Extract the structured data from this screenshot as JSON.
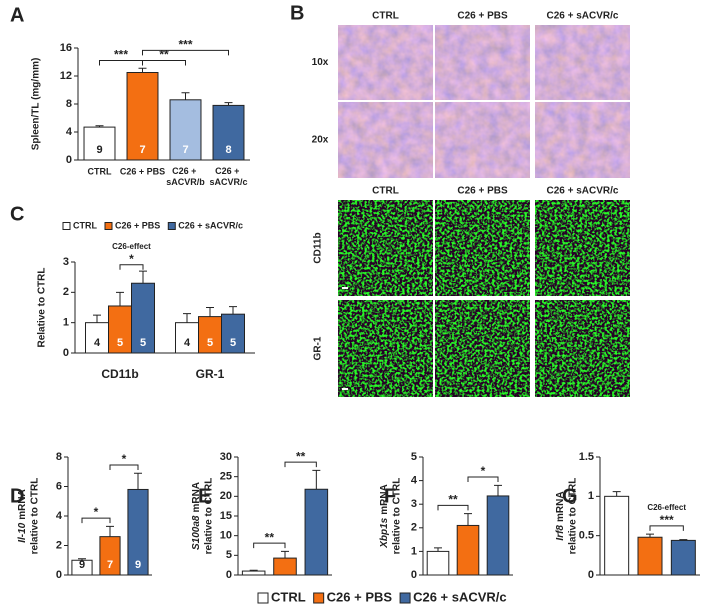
{
  "chart_data": [
    {
      "type": "bar",
      "panel": "A",
      "ylabel": "Spleen/TL (mg/mm)",
      "categories": [
        "CTRL",
        "C26 + PBS",
        "C26 + sACVR/b",
        "C26 + sACVR/c"
      ],
      "values": [
        4.7,
        12.5,
        8.6,
        7.8
      ],
      "errors": [
        0.2,
        0.6,
        1.0,
        0.4
      ],
      "n": [
        9,
        7,
        7,
        8
      ],
      "colors": [
        "#ffffff",
        "#f36f12",
        "#a4bde0",
        "#4069a0"
      ],
      "ylim": [
        0,
        16
      ],
      "yticks": [
        0,
        4,
        8,
        12,
        16
      ],
      "significance": [
        {
          "bars": [
            0,
            1
          ],
          "label": "***"
        },
        {
          "bars": [
            1,
            2
          ],
          "label": "**"
        },
        {
          "bars": [
            1,
            3
          ],
          "label": "***"
        }
      ]
    },
    {
      "type": "bar",
      "panel": "C",
      "ylabel": "Relative to CTRL",
      "categories": [
        "CD11b",
        "GR-1"
      ],
      "series": [
        {
          "name": "CTRL",
          "color": "#ffffff",
          "values": [
            1,
            1
          ],
          "errors": [
            0.25,
            0.3
          ],
          "n": [
            4,
            4
          ]
        },
        {
          "name": "C26 + PBS",
          "color": "#f36f12",
          "values": [
            1.55,
            1.2
          ],
          "errors": [
            0.45,
            0.3
          ],
          "n": [
            5,
            5
          ]
        },
        {
          "name": "C26 + sACVR/c",
          "color": "#4069a0",
          "values": [
            2.3,
            1.28
          ],
          "errors": [
            0.4,
            0.25
          ],
          "n": [
            5,
            5
          ]
        }
      ],
      "ylim": [
        0,
        3
      ],
      "yticks": [
        0,
        1,
        2,
        3
      ],
      "annotation": "C26-effect",
      "significance": [
        {
          "group": 0,
          "bars": [
            1,
            2
          ],
          "label": "*"
        }
      ]
    },
    {
      "type": "bar",
      "panel": "D",
      "ylabel": {
        "gene": "Il-10",
        "text": "mRNA",
        "line2": "relative to CTRL"
      },
      "categories": [
        null,
        null,
        null
      ],
      "values": [
        1,
        2.6,
        5.8
      ],
      "errors": [
        0.1,
        0.7,
        1.1
      ],
      "n": [
        9,
        7,
        9
      ],
      "colors": [
        "#ffffff",
        "#f36f12",
        "#4069a0"
      ],
      "ylim": [
        0,
        8
      ],
      "yticks": [
        0,
        2,
        4,
        6,
        8
      ],
      "significance": [
        {
          "bars": [
            0,
            1
          ],
          "label": "*"
        },
        {
          "bars": [
            1,
            2
          ],
          "label": "*"
        }
      ]
    },
    {
      "type": "bar",
      "panel": "E",
      "ylabel": {
        "gene": "S100a8",
        "text": "mRNA",
        "line2": "relative to CTRL"
      },
      "categories": [
        null,
        null,
        null
      ],
      "values": [
        1,
        4.3,
        21.8
      ],
      "errors": [
        0.2,
        1.7,
        4.8
      ],
      "colors": [
        "#ffffff",
        "#f36f12",
        "#4069a0"
      ],
      "ylim": [
        0,
        30
      ],
      "yticks": [
        0,
        5,
        10,
        15,
        20,
        25,
        30
      ],
      "significance": [
        {
          "bars": [
            0,
            1
          ],
          "label": "**"
        },
        {
          "bars": [
            1,
            2
          ],
          "label": "**"
        }
      ]
    },
    {
      "type": "bar",
      "panel": "F",
      "ylabel": {
        "gene": "Xbp1s",
        "text": "mRNA",
        "line2": "relative to CTRL"
      },
      "categories": [
        null,
        null,
        null
      ],
      "values": [
        1,
        2.1,
        3.35
      ],
      "errors": [
        0.15,
        0.5,
        0.45
      ],
      "colors": [
        "#ffffff",
        "#f36f12",
        "#4069a0"
      ],
      "ylim": [
        0,
        5
      ],
      "yticks": [
        0,
        1,
        2,
        3,
        4,
        5
      ],
      "significance": [
        {
          "bars": [
            0,
            1
          ],
          "label": "**"
        },
        {
          "bars": [
            1,
            2
          ],
          "label": "*"
        }
      ]
    },
    {
      "type": "bar",
      "panel": "G",
      "ylabel": {
        "gene": "Irf8",
        "text": "mRNA",
        "line2": "relative to CTRL"
      },
      "categories": [
        null,
        null,
        null
      ],
      "values": [
        1,
        0.48,
        0.44
      ],
      "errors": [
        0.06,
        0.04,
        0.01
      ],
      "colors": [
        "#ffffff",
        "#f36f12",
        "#4069a0"
      ],
      "ylim": [
        0,
        1.5
      ],
      "yticks": [
        0,
        0.5,
        1,
        1.5
      ],
      "annotation": "C26-effect",
      "significance": [
        {
          "bars": [
            1,
            2
          ],
          "label": "***"
        }
      ]
    }
  ],
  "images": {
    "panel": "B",
    "columns": [
      "CTRL",
      "C26 + PBS",
      "C26 + sACVR/c"
    ],
    "rows_top": [
      "10x",
      "20x"
    ],
    "rows_bottom": [
      "CD11b",
      "GR-1"
    ]
  },
  "legend": {
    "items": [
      {
        "name": "CTRL",
        "color": "#ffffff"
      },
      {
        "name": "C26 + PBS",
        "color": "#f36f12"
      },
      {
        "name": "C26 + sACVR/c",
        "color": "#4069a0"
      }
    ]
  }
}
